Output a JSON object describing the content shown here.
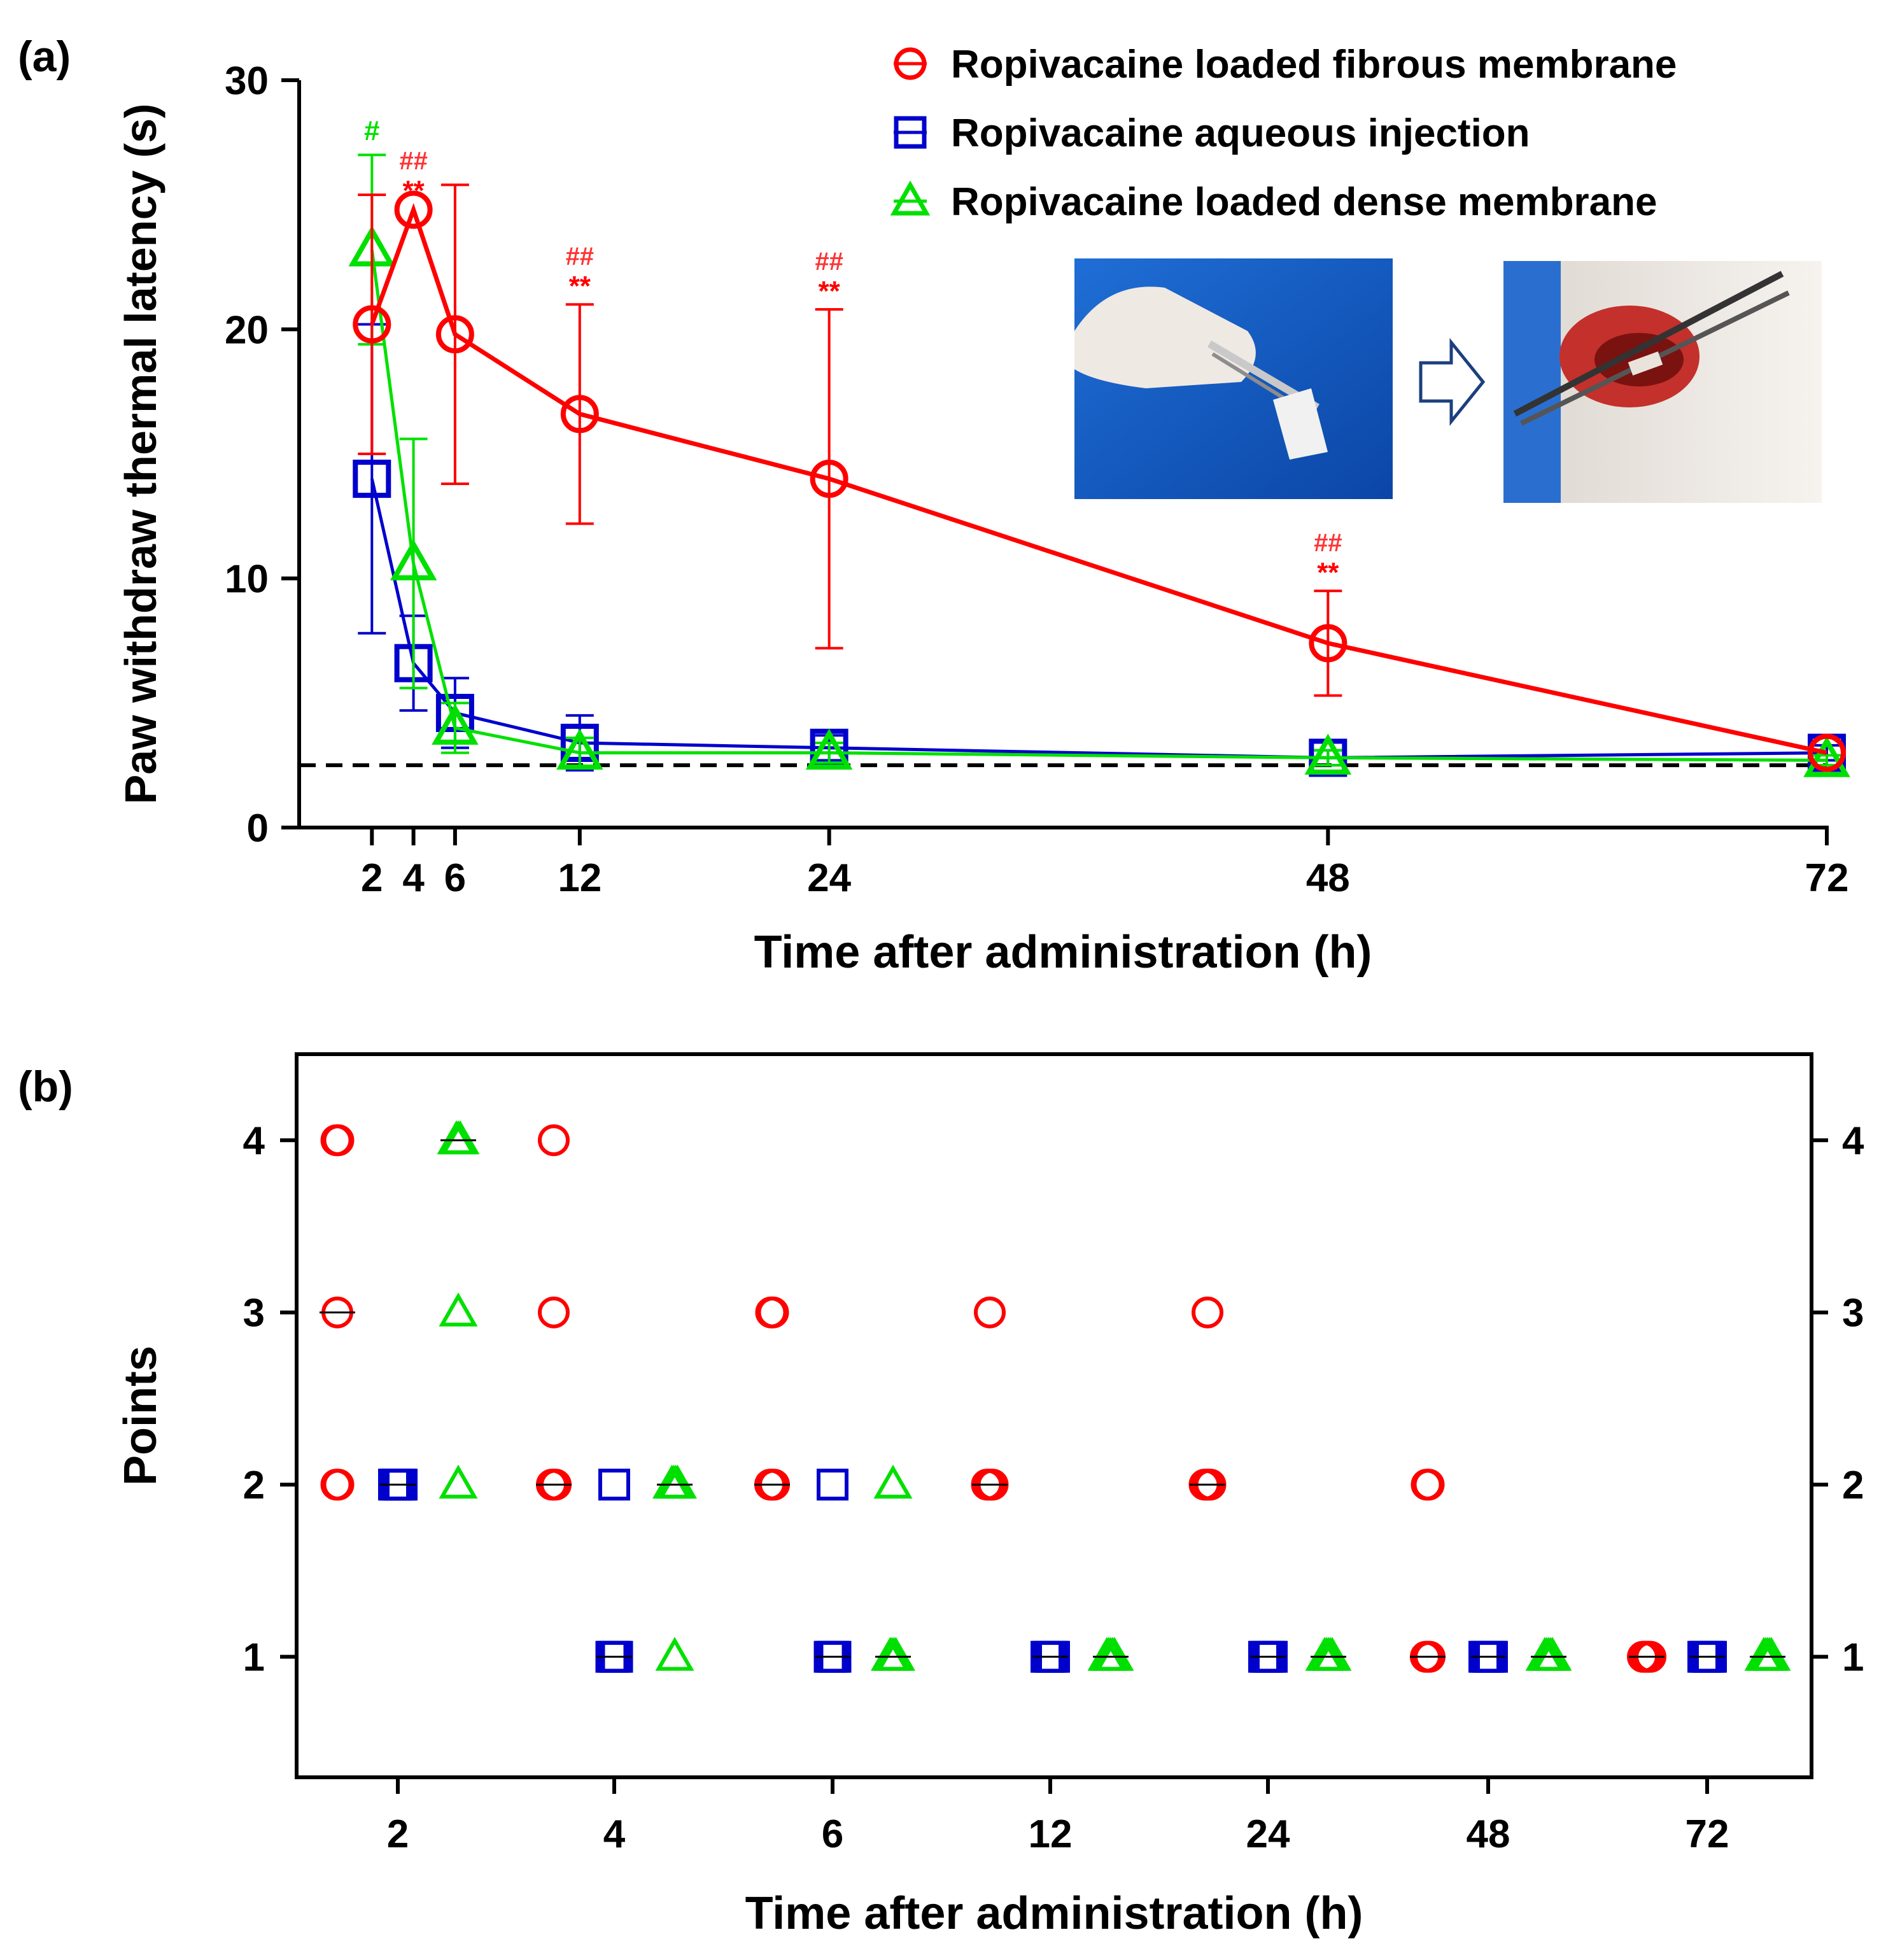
{
  "chart_data": [
    {
      "panel": "(a)",
      "type": "line",
      "ylabel": "Paw withdraw thermal latency (s)",
      "xlabel": "Time after administration (h)",
      "x_ticks": [
        2,
        4,
        6,
        12,
        24,
        48,
        72
      ],
      "y_ticks": [
        0,
        10,
        20,
        30
      ],
      "xlim": [
        -1.5,
        72
      ],
      "ylim": [
        0,
        30
      ],
      "baseline": 2.5,
      "legend": [
        {
          "name": "Ropivacaine loaded fibrous membrane",
          "marker": "circle",
          "color": "#ff0000"
        },
        {
          "name": "Ropivacaine aqueous injection",
          "marker": "square",
          "color": "#0000cc"
        },
        {
          "name": "Ropivacaine loaded dense membrane",
          "marker": "triangle",
          "color": "#00e000"
        }
      ],
      "series": [
        {
          "name": "Ropivacaine loaded fibrous membrane",
          "color": "#ff0000",
          "marker": "circle",
          "x": [
            2,
            4,
            6,
            12,
            24,
            48,
            72
          ],
          "y": [
            20.2,
            24.8,
            19.8,
            16.6,
            14.0,
            7.4,
            3.0
          ],
          "err": [
            5.2,
            0,
            6.0,
            4.4,
            6.8,
            2.1,
            0
          ]
        },
        {
          "name": "Ropivacaine aqueous injection",
          "color": "#0000cc",
          "marker": "square",
          "x": [
            2,
            4,
            6,
            12,
            24,
            48,
            72
          ],
          "y": [
            14.0,
            6.6,
            4.6,
            3.4,
            3.2,
            2.8,
            3.0
          ],
          "err": [
            6.2,
            1.9,
            1.4,
            1.1,
            0.5,
            0.3,
            0.3
          ]
        },
        {
          "name": "Ropivacaine loaded dense membrane",
          "color": "#00e000",
          "marker": "triangle",
          "x": [
            2,
            4,
            6,
            12,
            24,
            48,
            72
          ],
          "y": [
            23.2,
            10.6,
            4.0,
            3.0,
            3.0,
            2.8,
            2.7
          ],
          "err": [
            3.8,
            5.0,
            1.0,
            0.6,
            0.4,
            0.3,
            0.2
          ]
        }
      ],
      "annotations": [
        {
          "x": 2,
          "hash": "#",
          "color": "#00e000"
        },
        {
          "x": 4,
          "hash": "##",
          "star": "**"
        },
        {
          "x": 12,
          "hash": "##",
          "star": "**"
        },
        {
          "x": 24,
          "hash": "##",
          "star": "**"
        },
        {
          "x": 48,
          "hash": "##",
          "star": "**"
        }
      ]
    },
    {
      "panel": "(b)",
      "type": "scatter",
      "ylabel": "Points",
      "xlabel": "Time after administration (h)",
      "categories": [
        "2",
        "4",
        "6",
        "12",
        "24",
        "48",
        "72"
      ],
      "y_ticks": [
        1,
        2,
        3,
        4
      ],
      "ylim": [
        0.3,
        4.5
      ],
      "groups": [
        {
          "name": "Ropivacaine loaded fibrous membrane",
          "marker": "circle",
          "color": "#ff0000",
          "points": [
            {
              "category": "2",
              "values": [
                4,
                4,
                3,
                2,
                2
              ]
            },
            {
              "category": "4",
              "values": [
                4,
                3,
                2,
                2,
                2
              ]
            },
            {
              "category": "6",
              "values": [
                3,
                3,
                2,
                2,
                2
              ]
            },
            {
              "category": "12",
              "values": [
                3,
                2,
                2,
                2,
                2
              ]
            },
            {
              "category": "24",
              "values": [
                3,
                2,
                2,
                2,
                2
              ]
            },
            {
              "category": "48",
              "values": [
                2,
                2,
                1,
                1,
                1
              ]
            },
            {
              "category": "72",
              "values": [
                1,
                1,
                1,
                1,
                1
              ]
            }
          ]
        },
        {
          "name": "Ropivacaine aqueous injection",
          "marker": "square",
          "color": "#0000cc",
          "points": [
            {
              "category": "2",
              "values": [
                2,
                2,
                2,
                2,
                2
              ]
            },
            {
              "category": "4",
              "values": [
                2,
                1,
                1,
                1,
                1
              ]
            },
            {
              "category": "6",
              "values": [
                2,
                1,
                1,
                1,
                1
              ]
            },
            {
              "category": "12",
              "values": [
                1,
                1,
                1,
                1,
                1
              ]
            },
            {
              "category": "24",
              "values": [
                1,
                1,
                1,
                1,
                1
              ]
            },
            {
              "category": "48",
              "values": [
                1,
                1,
                1,
                1,
                1
              ]
            },
            {
              "category": "72",
              "values": [
                1,
                1,
                1,
                1,
                1
              ]
            }
          ]
        },
        {
          "name": "Ropivacaine loaded dense membrane",
          "marker": "triangle",
          "color": "#00e000",
          "points": [
            {
              "category": "2",
              "values": [
                4,
                4,
                4,
                3,
                2
              ]
            },
            {
              "category": "4",
              "values": [
                2,
                2,
                2,
                2,
                1
              ]
            },
            {
              "category": "6",
              "values": [
                2,
                1,
                1,
                1,
                1
              ]
            },
            {
              "category": "12",
              "values": [
                1,
                1,
                1,
                1,
                1
              ]
            },
            {
              "category": "24",
              "values": [
                1,
                1,
                1,
                1,
                1
              ]
            },
            {
              "category": "48",
              "values": [
                1,
                1,
                1,
                1,
                1
              ]
            },
            {
              "category": "72",
              "values": [
                1,
                1,
                1,
                1,
                1
              ]
            }
          ]
        }
      ]
    }
  ],
  "photos": {
    "left": "photo-membrane-held-with-forceps",
    "right": "photo-membrane-implanted-in-rat-incision"
  },
  "colors": {
    "fibrous": "#ff0000",
    "aqueous": "#0000cc",
    "dense": "#00e000",
    "axis": "#000000"
  }
}
